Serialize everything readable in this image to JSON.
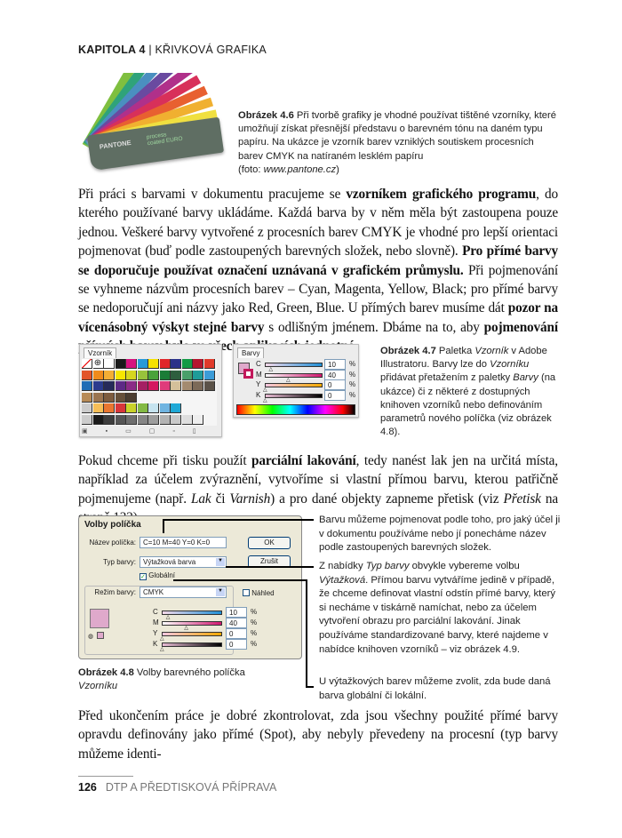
{
  "header": {
    "chapter": "KAPITOLA 4",
    "separator": "|",
    "title": "KŘIVKOVÁ GRAFIKA"
  },
  "fig46": {
    "logo": "PANTONE process coated EURO",
    "label": "Obrázek 4.6",
    "text": "Při tvorbě grafiky je vhodné používat tištěné vzorníky, které umožňují získat přesnější představu o barevném tónu na daném typu papíru. Na ukázce je vzorník barev vzniklých soutiskem procesních barev CMYK na natíraném lesklém papíru",
    "credit_prefix": "(foto: ",
    "credit_url": "www.pantone.cz",
    "credit_suffix": ")"
  },
  "para1": [
    {
      "t": "Při práci s barvami v dokumentu pracujeme se "
    },
    {
      "b": "vzorníkem grafického programu"
    },
    {
      "t": ", do kterého používané barvy ukládáme. Každá barva by v něm měla být zastoupena pouze jednou. Veškeré barvy vytvořené z procesních barev CMYK je vhodné pro lepší orientaci pojmenovat (buď podle zastoupených barevných složek, nebo slovně). "
    },
    {
      "b": "Pro přímé barvy se doporučuje používat označení uznávaná v grafickém průmyslu."
    },
    {
      "t": " Při pojmenování se vyhneme názvům procesních barev – Cyan, Magenta, Yellow, Black; pro přímé barvy se nedoporučují ani názvy jako Red, Green, Blue. U přímých barev musíme dát "
    },
    {
      "b": "pozor na vícenásobný výskyt stejné barvy"
    },
    {
      "t": " s odlišným jménem. Dbáme na to, aby "
    },
    {
      "b": "pojmenování přímých barev bylo ve všech aplikacích jednotné"
    },
    {
      "t": "."
    }
  ],
  "fig47": {
    "swatches_tab": "Vzorník",
    "colors_tab": "Barvy",
    "channels": [
      {
        "k": "C",
        "v": "10"
      },
      {
        "k": "M",
        "v": "40"
      },
      {
        "k": "Y",
        "v": "0"
      },
      {
        "k": "K",
        "v": "0"
      }
    ],
    "percent": "%",
    "swatch_rows": [
      [
        "none",
        "reg",
        "#ffffff",
        "#1a1a1a",
        "#d6137f",
        "#2a9ad8",
        "#f5e100",
        "#e0262a",
        "#2b3289",
        "#139a45",
        "#b5152e",
        "#e03a2a"
      ],
      [
        "#e2542a",
        "#ef8b1c",
        "#f3ae35",
        "#f6e500",
        "#d6d61e",
        "#98c23b",
        "#4aa23a",
        "#1b7c37",
        "#2e5e3e",
        "#4a9f6a",
        "#1f9c99",
        "#3c9cd8"
      ],
      [
        "#1f6cb5",
        "#2b3b8e",
        "#262a5a",
        "#5d2a86",
        "#8b2c87",
        "#a51f63",
        "#d41760",
        "#df3b7b",
        "#d4c09a",
        "#a48b70",
        "#7c6a58",
        "#5b5248"
      ],
      [
        "#b78a57",
        "#9a7450",
        "#7d5c3f",
        "#66503a",
        "#4b3d30"
      ],
      [
        "folder",
        "#f6be58",
        "#e97630",
        "#d8363a",
        "#c9d22a",
        "#83b944",
        "#c6e3ef",
        "#6fb4e1",
        "#1fa8d6"
      ],
      [
        "folder",
        "#1a1a1a",
        "#3d3d3d",
        "#555555",
        "#6e6e6e",
        "#858585",
        "#9d9d9d",
        "#b3b3b3",
        "#c9c9c9",
        "#dedede",
        "#eeeeee"
      ]
    ],
    "label": "Obrázek 4.7",
    "text_parts": [
      {
        "t": " Paletka "
      },
      {
        "i": "Vzorník"
      },
      {
        "t": " v Adobe Illustratoru. Barvy lze do "
      },
      {
        "i": "Vzorníku"
      },
      {
        "t": " přidávat přetažením z paletky "
      },
      {
        "i": "Barvy"
      },
      {
        "t": " (na ukázce) či z některé z dostupných knihoven vzorníků nebo definováním parametrů nového políčka (viz obrázek 4.8)."
      }
    ]
  },
  "para2": [
    {
      "t": "Pokud chceme při tisku použít "
    },
    {
      "b": "parciální lakování"
    },
    {
      "t": ", tedy nanést lak jen na určitá místa, například za účelem zvýraznění, vytvoříme si vlastní přímou barvu, kterou patřičně pojmenujeme (např. "
    },
    {
      "i": "Lak"
    },
    {
      "t": " či "
    },
    {
      "i": "Varnish"
    },
    {
      "t": ") a pro dané objekty zapneme přetisk (viz "
    },
    {
      "i": "Přetisk"
    },
    {
      "t": " na straně 132)."
    }
  ],
  "fig48": {
    "dialog_title": "Volby políčka",
    "name_label": "Název políčka:",
    "name_value": "C=10 M=40 Y=0 K=0",
    "ok": "OK",
    "cancel": "Zrušit",
    "type_label": "Typ barvy:",
    "type_value": "Výtažková barva",
    "global_label": "Globální",
    "global_checked": true,
    "mode_label": "Režim barvy:",
    "mode_value": "CMYK",
    "preview_label": "Náhled",
    "preview_checked": false,
    "channels": [
      {
        "k": "C",
        "v": "10"
      },
      {
        "k": "M",
        "v": "40"
      },
      {
        "k": "Y",
        "v": "0"
      },
      {
        "k": "K",
        "v": "0"
      }
    ],
    "percent": "%",
    "swatch_color": "#dfa9cb",
    "label": "Obrázek 4.8",
    "caption_text": " Volby barevného políčka ",
    "caption_italic": "Vzorníku",
    "note1": "Barvu můžeme pojmenovat podle toho, pro jaký účel ji v dokumentu používáme nebo jí ponecháme název podle zastoupených barevných složek.",
    "note2": [
      {
        "t": "Z nabídky "
      },
      {
        "i": "Typ barvy"
      },
      {
        "t": " obvykle vybereme volbu "
      },
      {
        "i": "Výtažková"
      },
      {
        "t": ". Přímou barvu vytváříme jedině v případě, že chceme definovat vlastní odstín přímé barvy, který si necháme v tiskárně namíchat, nebo za účelem vytvoření obrazu pro parciální lakování. Jinak používáme standardizované barvy, které najdeme v nabídce knihoven vzorníků – viz obrázek 4.9."
      }
    ],
    "note3": "U výtažkových barev můžeme zvolit, zda bude daná barva globální či lokální."
  },
  "para3": [
    {
      "t": "Před ukončením práce je dobré zkontrolovat, zda jsou všechny použité přímé barvy opravdu definovány jako přímé (Spot), aby nebyly převedeny na procesní (typ barvy můžeme identi-"
    }
  ],
  "footer": {
    "page": "126",
    "book": "DTP A PŘEDTISKOVÁ PŘÍPRAVA"
  }
}
